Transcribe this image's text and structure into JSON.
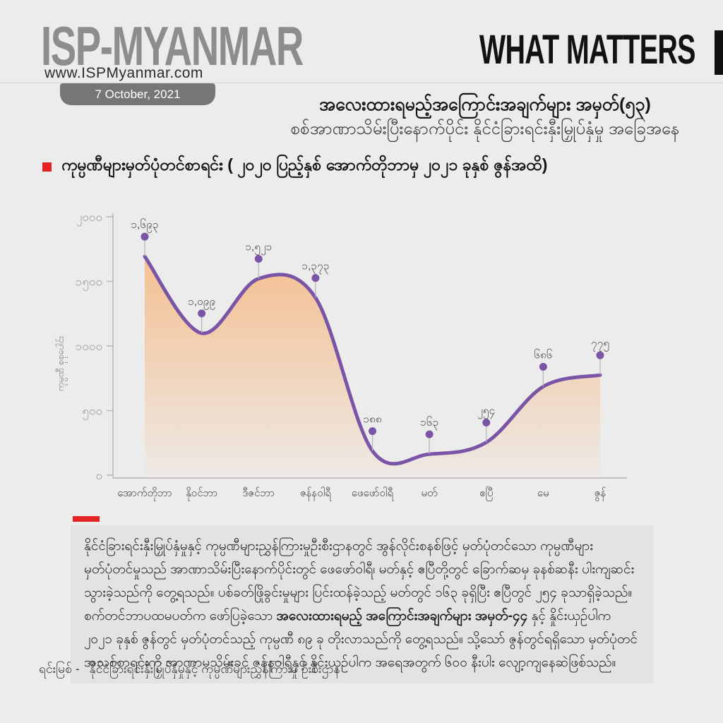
{
  "header": {
    "logo": "ISP-MYANMAR",
    "website": "www.ISPMyanmar.com",
    "date_badge": "7 October, 2021",
    "masthead": "WHAT MATTERS"
  },
  "titles": {
    "line1": "အလေးထားရမည့်အကြောင်းအချက်များ အမှတ်(၅၃)",
    "line2": "စစ်အာဏာသိမ်းပြီးနောက်ပိုင်း နိုင်ငံခြားရင်းနှီးမြှုပ်နှံမှု အခြေအနေ"
  },
  "chart_heading": "ကုမ္ပဏီများမှတ်ပုံတင်စာရင်း ( ၂၀၂၀ ပြည့်နှစ် အောက်တိုဘာမှ ၂၀၂၁ ခုနှစ် ဇွန်အထိ)",
  "chart_data": {
    "type": "area",
    "title": "ကုမ္ပဏီများမှတ်ပုံတင်စာရင်း ( ၂၀၂၀ ပြည့်နှစ် အောက်တိုဘာမှ ၂၀၂၁ ခုနှစ် ဇွန်အထိ)",
    "categories": [
      "အောက်တိုဘာ",
      "နိုဝင်ဘာ",
      "ဒီဇင်ဘာ",
      "ဇန်နဝါရီ",
      "ဖေဖော်ဝါရီ",
      "မတ်",
      "ဧပြီ",
      "မေ",
      "ဇွန်"
    ],
    "categories_en": [
      "October",
      "November",
      "December",
      "January",
      "February",
      "March",
      "April",
      "May",
      "June"
    ],
    "values": [
      1693,
      1099,
      1521,
      1373,
      188,
      163,
      254,
      686,
      775
    ],
    "value_labels": [
      "၁,၆၉၃",
      "၁,၀၉၉",
      "၁,၅၂၁",
      "၁,၃၇၃",
      "၁၈၈",
      "၁၆၃",
      "၂၅၄",
      "၆၈၆",
      "၇၇၅"
    ],
    "ylabel": "ကုမ္ပဏီ စုစုပေါင်း",
    "xlabel": "",
    "ylim": [
      0,
      2000
    ],
    "y_ticks": [
      {
        "value": 2000,
        "label": "၂၀၀၀"
      },
      {
        "value": 1500,
        "label": "၁၅၀၀"
      },
      {
        "value": 1000,
        "label": "၁၀၀၀"
      },
      {
        "value": 500,
        "label": "၅၀၀"
      },
      {
        "value": 0,
        "label": "၀"
      }
    ],
    "grid": false,
    "legend": false,
    "line_color": "#7a54a6",
    "marker_color": "#7a54a6",
    "area_color": "#f5ba85",
    "stem_color": "#b5b3b3",
    "axis_color": "#b3b1b1",
    "tick_label_color": "#9c9c9c",
    "data_label_color": "#4f4f4f",
    "x_label_color": "#4a4a4a"
  },
  "body": {
    "pre": "နိုင်ငံခြားရင်းနှီးမြှုပ်နှံမှုနှင့် ကုမ္ပဏီများညွှန်ကြားမှုဦးစီးဌာနတွင် အွန်လိုင်းစနစ်ဖြင့် မှတ်ပုံတင်သော ကုမ္ပဏီများ မှတ်ပုံတင်မှုသည် အာဏာသိမ်းပြီးနောက်ပိုင်းတွင် ဖေဖော်ဝါရီ၊ မတ်နှင့် ဧပြီတို့တွင် ခြောက်ဆမှ ခုနစ်ဆနီး ပါးကျဆင်းသွားခဲ့သည်ကို တွေ့ရသည်။ ပစ်ခတ်ဖြိုခွင်းမှုများ ပြင်းထန်ခဲ့သည့် မတ်တွင် ၁၆၃ ခုရှိပြီး ဧပြီတွင် ၂၅၄ ခုသာရှိခဲ့သည်။ စက်တင်ဘာပထမပတ်က ဖော်ပြခဲ့သော ",
    "bold": "အလေးထားရမည့် အကြောင်းအချက်များ အမှတ်-၄၄",
    "post": " နှင့် နှိုင်းယှဉ်ပါက ၂၀၂၁ ခုနှစ် ဇွန်တွင် မှတ်ပုံတင်သည့် ကုမ္ပဏီ ၈၉ ခု တိုးလာသည်ကို တွေ့ရသည်။ သို့သော် ဇွန်တွင်ရရှိသော မှတ်ပုံတင်အသစ်စာရင်းကို အာဏာမသိမ်းခင် ဇန်နဝါရီနှင့် နှိုင်းယှဉ်ပါက အရေအတွက် ၆၀၀ နီးပါး လျော့ကျနေဆဲဖြစ်သည်။"
  },
  "source": {
    "prefix": "ရင်းမြစ် -",
    "text": "နိုင်ငံခြားရင်းနှီးမြှုပ်နှံမှုနှင့် ကုမ္ပဏီများညွှန်ကြားမှု ဦးစီးဌာန"
  },
  "colors": {
    "page_bg": "#edecec",
    "card_bg": "#e4e2e2",
    "accent_red": "#e32222",
    "logo_gray": "#8d8d8d",
    "pill_gray": "#767676",
    "line_purple": "#7a54a6",
    "area_peach": "#f5ba85"
  }
}
